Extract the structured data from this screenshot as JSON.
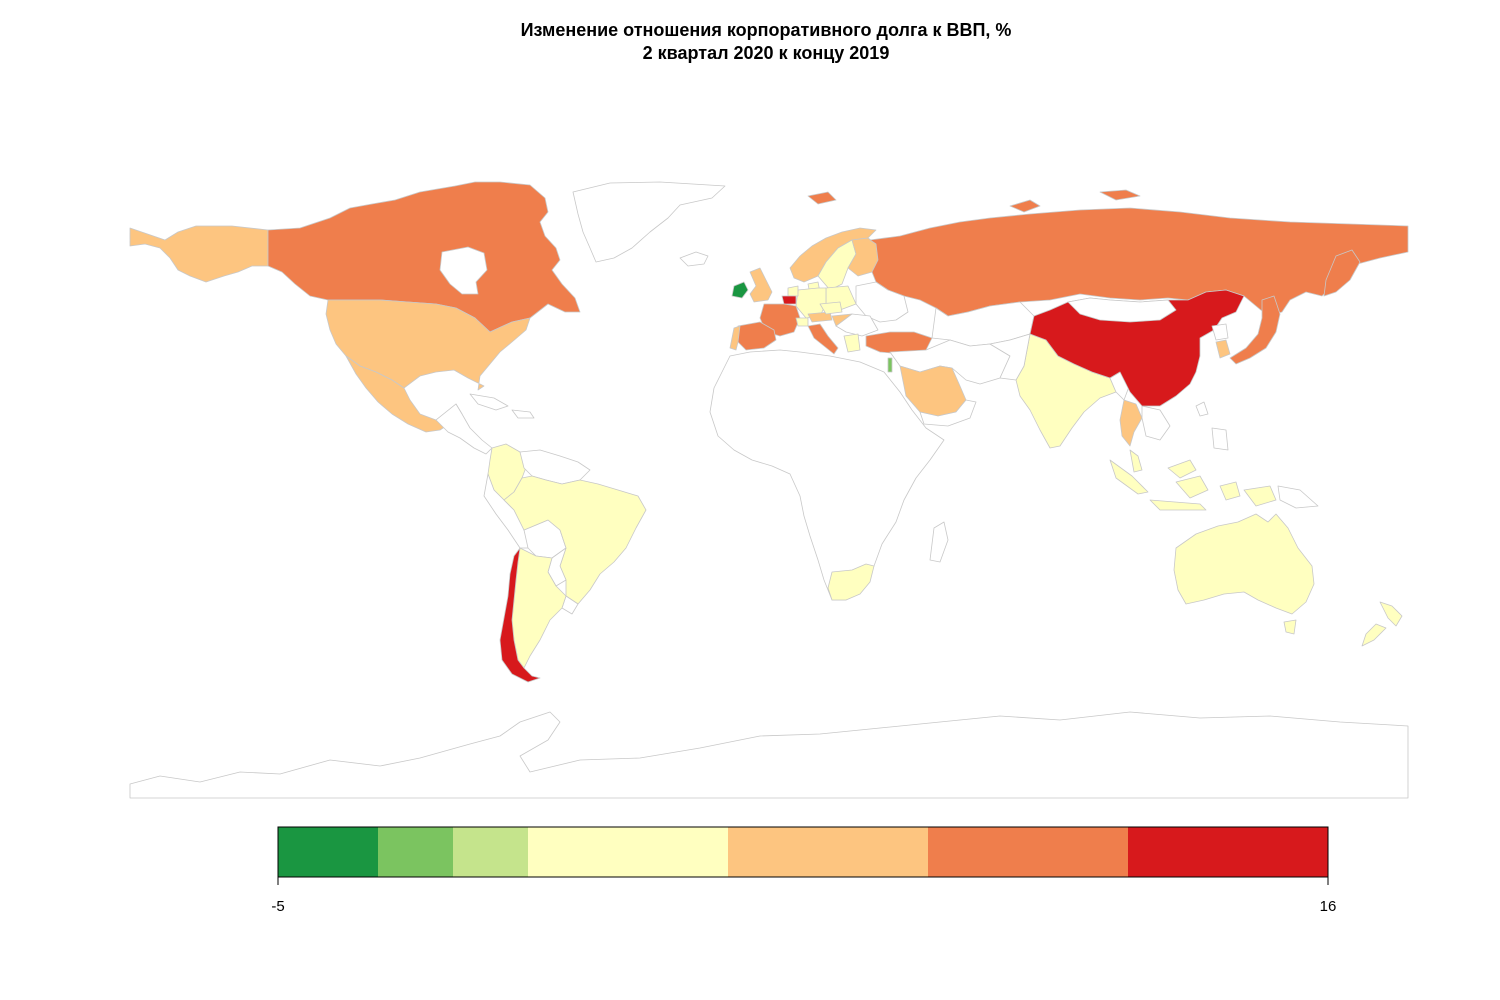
{
  "title": {
    "line1": "Изменение отношения корпоративного долга к ВВП, %",
    "line2": "2 квартал 2020 к концу 2019"
  },
  "legend": {
    "min": "-5",
    "max": "16",
    "bins": [
      {
        "from": -5,
        "to": -3,
        "color": "#1a9641"
      },
      {
        "from": -3,
        "to": -1.5,
        "color": "#7bc460"
      },
      {
        "from": -1.5,
        "to": 0,
        "color": "#c5e48c"
      },
      {
        "from": 0,
        "to": 4,
        "color": "#ffffc0"
      },
      {
        "from": 4,
        "to": 8,
        "color": "#fdc580"
      },
      {
        "from": 8,
        "to": 12,
        "color": "#ef7e4c"
      },
      {
        "from": 12,
        "to": 16,
        "color": "#d7191c"
      }
    ]
  },
  "colors": {
    "no_data": "#ffffff",
    "border": "#c8c8c8",
    "frame": "#bbbbbb"
  }
}
